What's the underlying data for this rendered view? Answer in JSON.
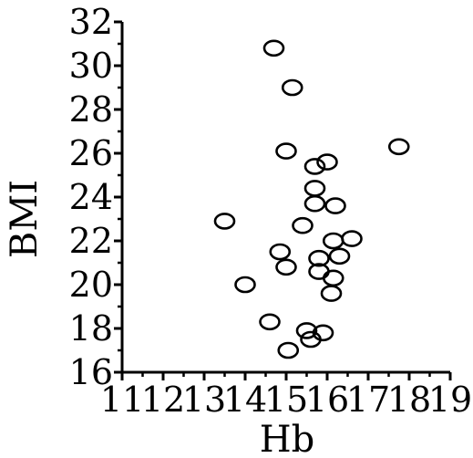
{
  "chart_data": {
    "type": "scatter",
    "title": "",
    "xlabel": "Hb",
    "ylabel": "BMI",
    "xlim": [
      11,
      19
    ],
    "ylim": [
      16,
      32
    ],
    "xticks": [
      11,
      12,
      13,
      14,
      15,
      16,
      17,
      18,
      19
    ],
    "yticks": [
      16,
      18,
      20,
      22,
      24,
      26,
      28,
      30,
      32
    ],
    "grid": false,
    "legend": "none",
    "marker": "open-circle",
    "colors": {
      "marker": "#000000",
      "axis": "#000000"
    },
    "series": [
      {
        "points": [
          {
            "x": 14.7,
            "y": 30.8
          },
          {
            "x": 15.15,
            "y": 29.0
          },
          {
            "x": 15.0,
            "y": 26.1
          },
          {
            "x": 15.7,
            "y": 25.4
          },
          {
            "x": 16.0,
            "y": 25.6
          },
          {
            "x": 17.75,
            "y": 26.3
          },
          {
            "x": 15.7,
            "y": 24.4
          },
          {
            "x": 15.7,
            "y": 23.7
          },
          {
            "x": 16.2,
            "y": 23.6
          },
          {
            "x": 13.5,
            "y": 22.9
          },
          {
            "x": 15.4,
            "y": 22.7
          },
          {
            "x": 16.15,
            "y": 22.0
          },
          {
            "x": 16.6,
            "y": 22.1
          },
          {
            "x": 14.85,
            "y": 21.5
          },
          {
            "x": 15.8,
            "y": 21.2
          },
          {
            "x": 16.3,
            "y": 21.3
          },
          {
            "x": 15.0,
            "y": 20.8
          },
          {
            "x": 15.8,
            "y": 20.6
          },
          {
            "x": 16.15,
            "y": 20.3
          },
          {
            "x": 14.0,
            "y": 20.0
          },
          {
            "x": 16.1,
            "y": 19.6
          },
          {
            "x": 14.6,
            "y": 18.3
          },
          {
            "x": 15.5,
            "y": 17.9
          },
          {
            "x": 15.9,
            "y": 17.8
          },
          {
            "x": 15.6,
            "y": 17.5
          },
          {
            "x": 15.05,
            "y": 17.0
          }
        ]
      }
    ]
  }
}
